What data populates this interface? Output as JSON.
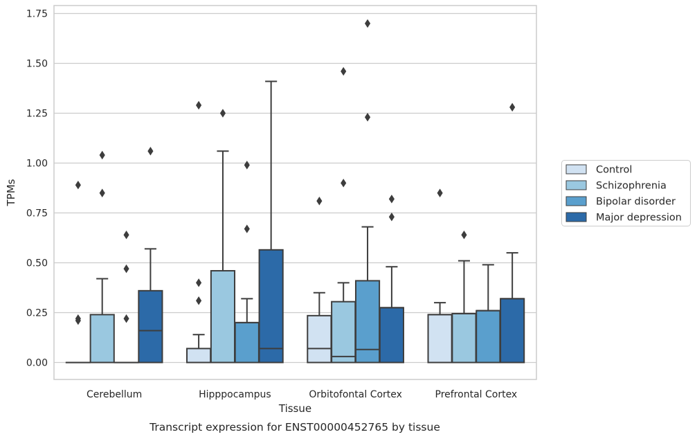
{
  "chart_data": {
    "type": "box",
    "caption": "Transcript expression for ENST00000452765 by tissue",
    "xlabel": "Tissue",
    "ylabel": "TPMs",
    "ylim": [
      -0.085,
      1.79
    ],
    "yticks": [
      0.0,
      0.25,
      0.5,
      0.75,
      1.0,
      1.25,
      1.5,
      1.75
    ],
    "ytick_labels": [
      "0.00",
      "0.25",
      "0.50",
      "0.75",
      "1.00",
      "1.25",
      "1.50",
      "1.75"
    ],
    "grid": "horizontal",
    "legend_position": "right",
    "categories": [
      "Cerebellum",
      "Hipppocampus",
      "Orbitofontal Cortex",
      "Prefrontal Cortex"
    ],
    "series": [
      {
        "name": "Control",
        "color": "#d1e2f2",
        "boxes": [
          {
            "q1": 0,
            "median": 0,
            "q3": 0,
            "whisker_low": 0,
            "whisker_high": 0,
            "outliers": [
              0.21,
              0.22,
              0.89
            ]
          },
          {
            "q1": 0,
            "median": 0,
            "q3": 0.07,
            "whisker_low": 0,
            "whisker_high": 0.14,
            "outliers": [
              0.31,
              0.4,
              1.29
            ]
          },
          {
            "q1": 0,
            "median": 0.07,
            "q3": 0.235,
            "whisker_low": 0,
            "whisker_high": 0.35,
            "outliers": [
              0.81
            ]
          },
          {
            "q1": 0,
            "median": 0.24,
            "q3": 0.24,
            "whisker_low": 0,
            "whisker_high": 0.3,
            "outliers": [
              0.85
            ]
          }
        ]
      },
      {
        "name": "Schizophrenia",
        "color": "#9ac8e0",
        "boxes": [
          {
            "q1": 0,
            "median": 0,
            "q3": 0.24,
            "whisker_low": 0,
            "whisker_high": 0.42,
            "outliers": [
              0.85,
              1.04
            ]
          },
          {
            "q1": 0,
            "median": 0,
            "q3": 0.46,
            "whisker_low": 0,
            "whisker_high": 1.06,
            "outliers": [
              1.25
            ]
          },
          {
            "q1": 0,
            "median": 0.03,
            "q3": 0.305,
            "whisker_low": 0,
            "whisker_high": 0.4,
            "outliers": [
              0.9,
              1.46
            ]
          },
          {
            "q1": 0,
            "median": 0.245,
            "q3": 0.245,
            "whisker_low": 0,
            "whisker_high": 0.51,
            "outliers": [
              0.64
            ]
          }
        ]
      },
      {
        "name": "Bipolar disorder",
        "color": "#5a9fcd",
        "boxes": [
          {
            "q1": 0,
            "median": 0,
            "q3": 0,
            "whisker_low": 0,
            "whisker_high": 0,
            "outliers": [
              0.22,
              0.47,
              0.64
            ]
          },
          {
            "q1": 0,
            "median": 0.2,
            "q3": 0.2,
            "whisker_low": 0,
            "whisker_high": 0.32,
            "outliers": [
              0.67,
              0.99
            ]
          },
          {
            "q1": 0,
            "median": 0.065,
            "q3": 0.41,
            "whisker_low": 0,
            "whisker_high": 0.68,
            "outliers": [
              1.23,
              1.7
            ]
          },
          {
            "q1": 0,
            "median": 0.26,
            "q3": 0.26,
            "whisker_low": 0,
            "whisker_high": 0.49,
            "outliers": []
          }
        ]
      },
      {
        "name": "Major depression",
        "color": "#2c6aa8",
        "boxes": [
          {
            "q1": 0,
            "median": 0.16,
            "q3": 0.36,
            "whisker_low": 0,
            "whisker_high": 0.57,
            "outliers": [
              1.06
            ]
          },
          {
            "q1": 0,
            "median": 0.07,
            "q3": 0.565,
            "whisker_low": 0,
            "whisker_high": 1.41,
            "outliers": []
          },
          {
            "q1": 0,
            "median": 0.275,
            "q3": 0.275,
            "whisker_low": 0,
            "whisker_high": 0.48,
            "outliers": [
              0.73,
              0.82
            ]
          },
          {
            "q1": 0,
            "median": 0.32,
            "q3": 0.32,
            "whisker_low": 0,
            "whisker_high": 0.55,
            "outliers": [
              1.28
            ]
          }
        ]
      }
    ]
  }
}
